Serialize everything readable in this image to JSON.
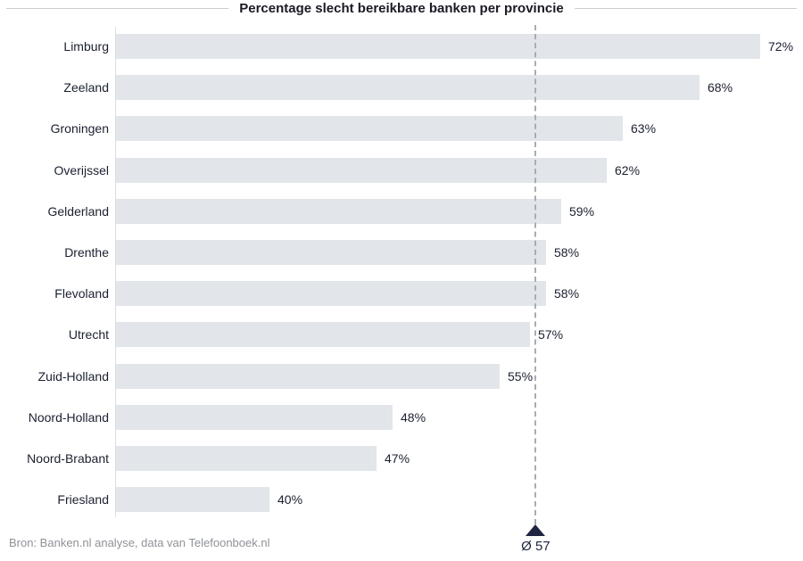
{
  "chart_data": {
    "type": "bar",
    "orientation": "horizontal",
    "title": "Percentage slecht bereikbare banken per provincie",
    "categories": [
      "Limburg",
      "Zeeland",
      "Groningen",
      "Overijssel",
      "Gelderland",
      "Drenthe",
      "Flevoland",
      "Utrecht",
      "Zuid-Holland",
      "Noord-Holland",
      "Noord-Brabant",
      "Friesland"
    ],
    "values": [
      72,
      68,
      63,
      62,
      59,
      58,
      58,
      57,
      55,
      48,
      47,
      40
    ],
    "value_suffix": "%",
    "xlim": [
      30,
      75
    ],
    "grid": false,
    "legend": false,
    "average": {
      "value": 57,
      "label": "Ø 57"
    },
    "colors": {
      "bar_fill": "#e2e5e9",
      "accent_navy": "#1f2540",
      "dashed_line": "#a9adb2",
      "axis_line": "#dcdfe3",
      "text_dark": "#1b2030",
      "source_gray": "#8e9297"
    }
  },
  "source_note": "Bron: Banken.nl analyse, data van Telefoonboek.nl"
}
